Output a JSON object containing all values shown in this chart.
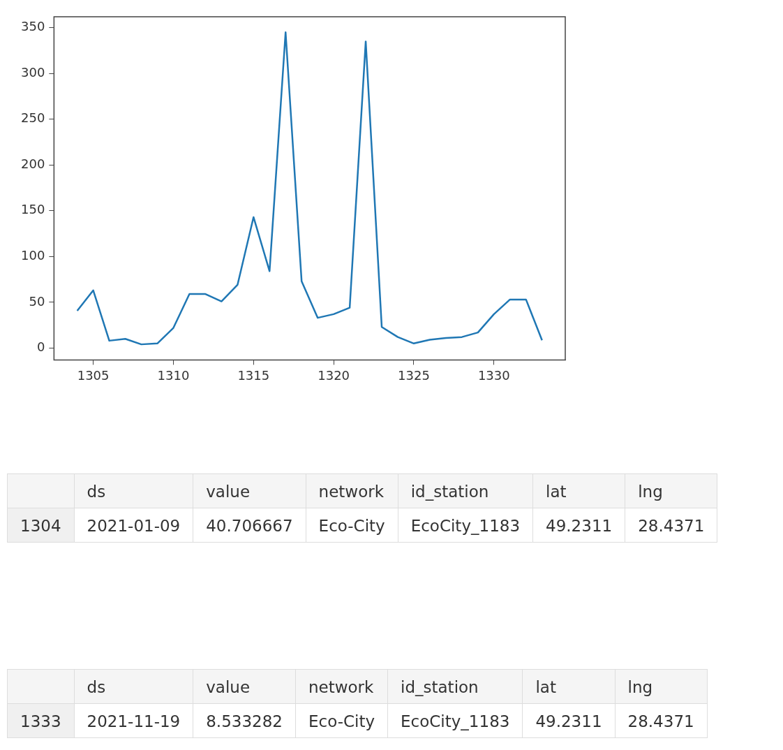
{
  "chart_data": [
    {
      "type": "line",
      "x": [
        1304,
        1305,
        1306,
        1307,
        1308,
        1309,
        1310,
        1311,
        1312,
        1313,
        1314,
        1315,
        1316,
        1317,
        1318,
        1319,
        1320,
        1321,
        1322,
        1323,
        1324,
        1325,
        1326,
        1327,
        1328,
        1329,
        1330,
        1331,
        1332,
        1333
      ],
      "series": [
        {
          "color": "#1f77b4",
          "values": [
            40.7,
            63,
            8,
            10,
            4,
            5,
            22,
            59,
            59,
            51,
            69,
            143,
            84,
            345,
            73,
            33,
            37,
            44,
            335,
            23,
            12,
            5,
            9,
            11,
            12,
            17,
            37,
            53,
            53,
            8.5
          ]
        }
      ],
      "xlim": [
        1302.55,
        1334.45
      ],
      "xticks": [
        1305,
        1310,
        1315,
        1320,
        1325,
        1330
      ],
      "ylim": [
        -13,
        362
      ],
      "yticks": [
        0,
        50,
        100,
        150,
        200,
        250,
        300,
        350
      ],
      "grid": false,
      "legend": false,
      "marker": "none",
      "line_style": "solid"
    },
    {
      "type": "other",
      "categories": [
        null,
        "ds",
        "value",
        "network",
        "id_station",
        "lat",
        "lng"
      ],
      "annotations": [
        "1304",
        "2021-01-09",
        "40.706667",
        "Eco-City",
        "EcoCity_1183",
        "49.2311",
        "28.4371"
      ]
    },
    {
      "type": "other",
      "categories": [
        null,
        "ds",
        "value",
        "network",
        "id_station",
        "lat",
        "lng"
      ],
      "annotations": [
        "1333",
        "2021-11-19",
        "8.533282",
        "Eco-City",
        "EcoCity_1183",
        "49.2311",
        "28.4371"
      ]
    }
  ]
}
